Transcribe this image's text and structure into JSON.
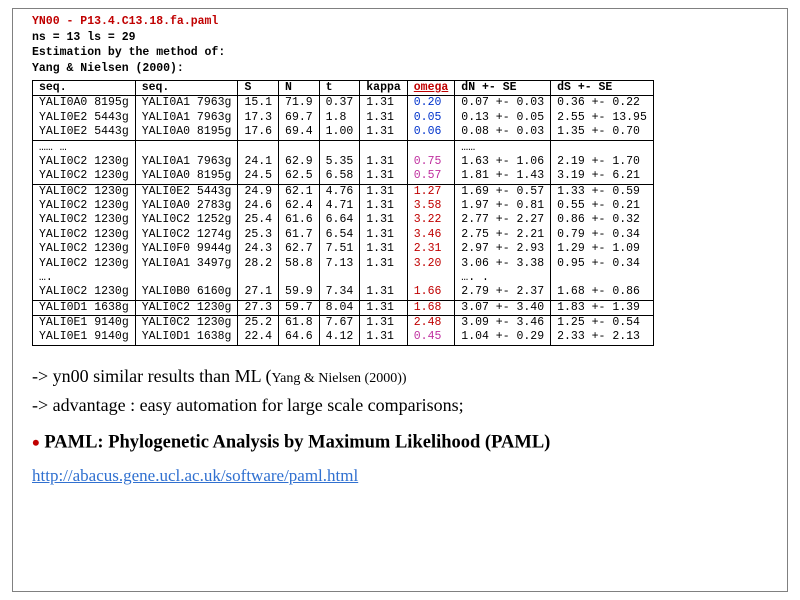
{
  "header": {
    "line1": "YN00 -  P13.4.C13.18.fa.paml",
    "line2": "ns =  13   ls =  29",
    "line3": "Estimation by the method of:",
    "line4": "Yang & Nielsen (2000):"
  },
  "table": {
    "columns": [
      "seq.",
      "seq.",
      "S",
      "N",
      "t",
      "kappa",
      "omega",
      "dN +- SE",
      "dS +- SE"
    ],
    "rows": [
      {
        "seq1": "YALI0A0 8195g",
        "seq2": "YALI0A1 7963g",
        "S": "15.1",
        "N": "71.9",
        "t": "0.37",
        "kappa": "1.31",
        "omega": "0.20",
        "omega_cls": "v-blue",
        "dN": "0.07 +-  0.03",
        "dS": "0.36 +-  0.22",
        "ul": false,
        "dots": ""
      },
      {
        "seq1": "YALI0E2 5443g",
        "seq2": "YALI0A1 7963g",
        "S": "17.3",
        "N": "69.7",
        "t": "1.8",
        "kappa": "1.31",
        "omega": "0.05",
        "omega_cls": "v-blue",
        "dN": "0.13 +-  0.05",
        "dS": "2.55 +- 13.95",
        "ul": false,
        "dots": ""
      },
      {
        "seq1": "YALI0E2 5443g",
        "seq2": "YALI0A0 8195g",
        "S": "17.6",
        "N": "69.4",
        "t": "1.00",
        "kappa": "1.31",
        "omega": "0.06",
        "omega_cls": "v-blue",
        "dN": "0.08 +-  0.03",
        "dS": "1.35 +-  0.70",
        "ul": true,
        "dots": ""
      },
      {
        "seq1": "…… …",
        "seq2": "",
        "S": "",
        "N": "",
        "t": "",
        "kappa": "",
        "omega": "",
        "omega_cls": "",
        "dN": "",
        "dS": "",
        "ul": false,
        "dots": "……"
      },
      {
        "seq1": "YALI0C2 1230g",
        "seq2": "YALI0A1 7963g",
        "S": "24.1",
        "N": "62.9",
        "t": "5.35",
        "kappa": "1.31",
        "omega": "0.75",
        "omega_cls": "v-mag",
        "dN": "1.63 +-  1.06",
        "dS": "2.19 +-  1.70",
        "ul": false,
        "dots": ""
      },
      {
        "seq1": "YALI0C2 1230g",
        "seq2": "YALI0A0 8195g",
        "S": "24.5",
        "N": "62.5",
        "t": "6.58",
        "kappa": "1.31",
        "omega": "0.57",
        "omega_cls": "v-mag",
        "dN": "1.81 +-  1.43",
        "dS": "3.19 +-  6.21",
        "ul": true,
        "dots": ""
      },
      {
        "seq1": "YALI0C2 1230g",
        "seq2": "YALI0E2 5443g",
        "S": "24.9",
        "N": "62.1",
        "t": "4.76",
        "kappa": "1.31",
        "omega": "1.27",
        "omega_cls": "v-red",
        "dN": "1.69 +-  0.57",
        "dS": "1.33 +-  0.59",
        "ul": false,
        "dots": ""
      },
      {
        "seq1": "YALI0C2 1230g",
        "seq2": "YALI0A0 2783g",
        "S": "24.6",
        "N": "62.4",
        "t": "4.71",
        "kappa": "1.31",
        "omega": "3.58",
        "omega_cls": "v-red",
        "dN": "1.97 +-  0.81",
        "dS": "0.55 +-  0.21",
        "ul": false,
        "dots": ""
      },
      {
        "seq1": "YALI0C2 1230g",
        "seq2": "YALI0C2 1252g",
        "S": "25.4",
        "N": "61.6",
        "t": "6.64",
        "kappa": "1.31",
        "omega": "3.22",
        "omega_cls": "v-red",
        "dN": "2.77 +-  2.27",
        "dS": "0.86 +-  0.32",
        "ul": false,
        "dots": ""
      },
      {
        "seq1": "YALI0C2 1230g",
        "seq2": "YALI0C2 1274g",
        "S": "25.3",
        "N": "61.7",
        "t": "6.54",
        "kappa": "1.31",
        "omega": "3.46",
        "omega_cls": "v-red",
        "dN": "2.75 +-  2.21",
        "dS": "0.79 +-  0.34",
        "ul": false,
        "dots": ""
      },
      {
        "seq1": "YALI0C2 1230g",
        "seq2": "YALI0F0 9944g",
        "S": "24.3",
        "N": "62.7",
        "t": "7.51",
        "kappa": "1.31",
        "omega": "2.31",
        "omega_cls": "v-red",
        "dN": "2.97 +-  2.93",
        "dS": "1.29 +-  1.09",
        "ul": false,
        "dots": ""
      },
      {
        "seq1": "YALI0C2 1230g",
        "seq2": "YALI0A1 3497g",
        "S": "28.2",
        "N": "58.8",
        "t": "7.13",
        "kappa": "1.31",
        "omega": "3.20",
        "omega_cls": "v-red",
        "dN": "3.06 +-  3.38",
        "dS": "0.95 +-  0.34",
        "ul": false,
        "dots": ""
      },
      {
        "seq1": "….",
        "seq2": "",
        "S": "",
        "N": "",
        "t": "",
        "kappa": "",
        "omega": "",
        "omega_cls": "",
        "dN": "",
        "dS": "",
        "ul": false,
        "dots": "…. ."
      },
      {
        "seq1": "YALI0C2 1230g",
        "seq2": "YALI0B0 6160g",
        "S": "27.1",
        "N": "59.9",
        "t": "7.34",
        "kappa": "1.31",
        "omega": "1.66",
        "omega_cls": "v-red",
        "dN": "2.79 +-  2.37",
        "dS": "1.68 +-  0.86",
        "ul": true,
        "dots": ""
      },
      {
        "seq1": "YALI0D1 1638g",
        "seq2": "YALI0C2 1230g",
        "S": "27.3",
        "N": "59.7",
        "t": "8.04",
        "kappa": "1.31",
        "omega": "1.68",
        "omega_cls": "v-red",
        "dN": "3.07 +-  3.40",
        "dS": "1.83 +-  1.39",
        "ul": true,
        "dots": ""
      },
      {
        "seq1": "YALI0E1 9140g",
        "seq2": "YALI0C2 1230g",
        "S": "25.2",
        "N": "61.8",
        "t": "7.67",
        "kappa": "1.31",
        "omega": "2.48",
        "omega_cls": "v-red",
        "dN": "3.09 +-  3.46",
        "dS": "1.25 +-  0.54",
        "ul": false,
        "dots": ""
      },
      {
        "seq1": "YALI0E1 9140g",
        "seq2": "YALI0D1 1638g",
        "S": "22.4",
        "N": "64.6",
        "t": "4.12",
        "kappa": "1.31",
        "omega": "0.45",
        "omega_cls": "v-mag",
        "dN": "1.04 +-  0.29",
        "dS": "2.33 +-  2.13",
        "ul": false,
        "dots": ""
      }
    ]
  },
  "notes": {
    "n1a": "-> yn00   similar results than ML (",
    "n1b": "Yang & Nielsen (2000))",
    "n2": "-> advantage : easy automation for large scale comparisons;",
    "paml": "PAML: Phylogenetic Analysis by Maximum Likelihood (PAML)",
    "link": "http://abacus.gene.ucl.ac.uk/software/paml.html"
  },
  "colors": {
    "header_red": "#c00000",
    "blue": "#0033cc",
    "magenta": "#c030a0",
    "link": "#3070d0"
  }
}
